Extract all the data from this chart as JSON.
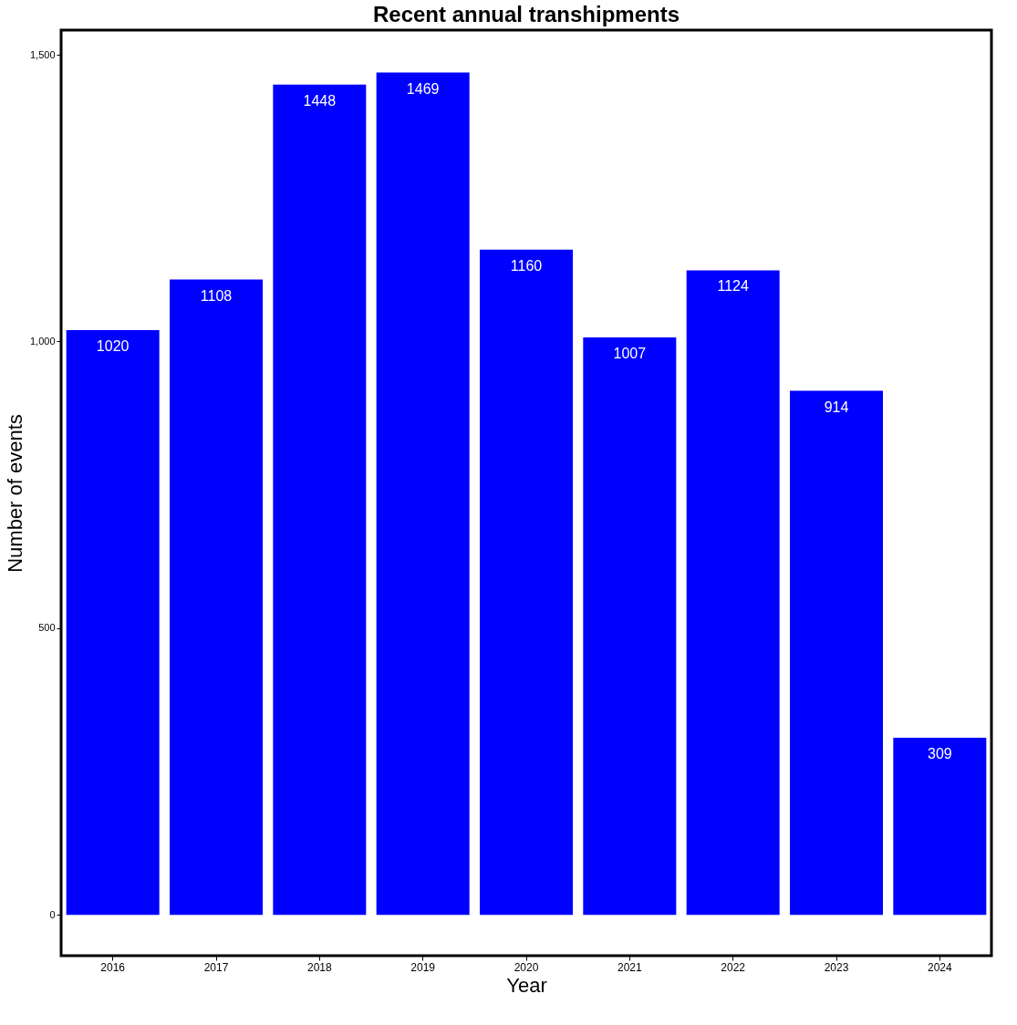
{
  "chart_data": {
    "type": "bar",
    "title": "Recent annual transhipments",
    "xlabel": "Year",
    "ylabel": "Number of events",
    "categories": [
      "2016",
      "2017",
      "2018",
      "2019",
      "2020",
      "2021",
      "2022",
      "2023",
      "2024"
    ],
    "values": [
      1020,
      1108,
      1448,
      1469,
      1160,
      1007,
      1124,
      914,
      309
    ],
    "color": "#0000ff",
    "ylim": [
      -71,
      1543
    ],
    "yticks": [
      0,
      500,
      {
        "value": 1000,
        "label": "1,000"
      },
      {
        "value": 1500,
        "label": "1,500"
      }
    ],
    "data_labels": true,
    "grid": false
  }
}
